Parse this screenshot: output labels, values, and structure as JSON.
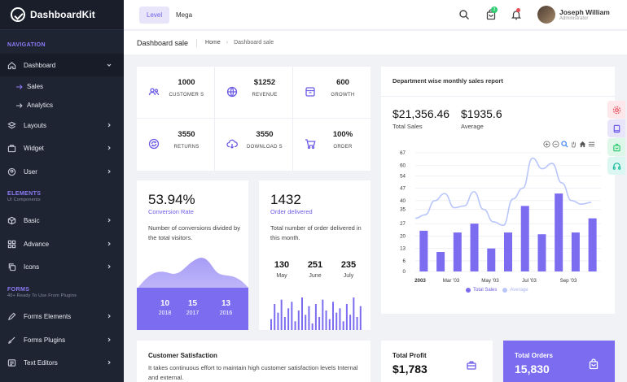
{
  "brand": {
    "name": "DashboardKit"
  },
  "sidebar": {
    "sections": [
      {
        "title": "NAVIGATION",
        "subtitle": ""
      },
      {
        "title": "ELEMENTS",
        "subtitle": "UI Components"
      },
      {
        "title": "FORMS",
        "subtitle": "40+ Ready To Use From Plugins"
      }
    ],
    "items": [
      {
        "label": "Dashboard",
        "icon": "home-icon"
      },
      {
        "label": "Layouts",
        "icon": "layers-icon"
      },
      {
        "label": "Widget",
        "icon": "briefcase-icon"
      },
      {
        "label": "User",
        "icon": "user-circle-icon"
      },
      {
        "label": "Basic",
        "icon": "box-icon"
      },
      {
        "label": "Advance",
        "icon": "grid-icon"
      },
      {
        "label": "Icons",
        "icon": "copy-icon"
      },
      {
        "label": "Forms Elements",
        "icon": "pen-icon"
      },
      {
        "label": "Forms Plugins",
        "icon": "brush-icon"
      },
      {
        "label": "Text Editors",
        "icon": "editor-icon"
      }
    ],
    "subitems": [
      {
        "label": "Sales"
      },
      {
        "label": "Analytics"
      }
    ]
  },
  "header": {
    "tabs": [
      {
        "label": "Level"
      },
      {
        "label": "Mega"
      }
    ],
    "cart_badge": "3",
    "user": {
      "name": "Joseph William",
      "role": "Administrator"
    }
  },
  "breadcrumb": {
    "title": "Dashboard sale",
    "home": "Home",
    "current": "Dashboard sale"
  },
  "stats": [
    {
      "value": "1000",
      "label": "CUSTOMER S",
      "icon": "users-icon"
    },
    {
      "value": "$1252",
      "label": "REVENUE",
      "icon": "globe-icon"
    },
    {
      "value": "600",
      "label": "GROWTH",
      "icon": "box-icon"
    },
    {
      "value": "3550",
      "label": "RETURNS",
      "icon": "refresh-icon"
    },
    {
      "value": "3550",
      "label": "DOWNLOAD S",
      "icon": "cloud-download-icon"
    },
    {
      "value": "100%",
      "label": "ORDER",
      "icon": "cart-icon"
    }
  ],
  "conversion": {
    "value": "53.94%",
    "label": "Conversion Rate",
    "desc": "Number of conversions divided by the total visitors.",
    "years": [
      {
        "n": "10",
        "y": "2018"
      },
      {
        "n": "15",
        "y": "2017"
      },
      {
        "n": "13",
        "y": "2016"
      }
    ],
    "accent": "#7b6cf0"
  },
  "orders": {
    "value": "1432",
    "label": "Order delivered",
    "desc": "Total number of order delivered in this month.",
    "months": [
      {
        "n": "130",
        "m": "May"
      },
      {
        "n": "251",
        "m": "June"
      },
      {
        "n": "235",
        "m": "July"
      }
    ],
    "spark": [
      5,
      12,
      8,
      14,
      6,
      10,
      13,
      4,
      9,
      15,
      7,
      11,
      3,
      12,
      6,
      14,
      9,
      5,
      13,
      8,
      10,
      4,
      12,
      7,
      15,
      6,
      11
    ]
  },
  "department": {
    "title": "Department wise monthly sales report",
    "total_sales": "$21,356.46",
    "total_sales_label": "Total Sales",
    "average": "$1935.6",
    "average_label": "Average"
  },
  "chart_data": {
    "type": "bar",
    "x_tick_labels": [
      "2003",
      "Mar '03",
      "May '03",
      "Jul '03",
      "Sep '03"
    ],
    "yticks": [
      0,
      6,
      13,
      20,
      27,
      35,
      40,
      47,
      54,
      60,
      67
    ],
    "ylim": [
      0,
      67
    ],
    "series": [
      {
        "name": "Total Sales",
        "type": "bar",
        "color": "#7b6cf0",
        "values": [
          23,
          11,
          22,
          27,
          13,
          22,
          37,
          21,
          44,
          22,
          30
        ]
      },
      {
        "name": "Average",
        "type": "line",
        "color": "#b9c6fb",
        "values": [
          30,
          32,
          40,
          44,
          36,
          37,
          45,
          35,
          28,
          26,
          41,
          47,
          64,
          58,
          61,
          50,
          40,
          38,
          39
        ]
      }
    ],
    "legend": "bottom"
  },
  "satisfaction": {
    "title": "Customer Satisfaction",
    "desc": "It takes continuous effort to maintain high customer satisfaction levels Internal and external."
  },
  "profit": {
    "title": "Total Profit",
    "value": "$1,783"
  },
  "total_orders": {
    "title": "Total Orders",
    "value": "15,830"
  },
  "fab_colors": [
    "#e74c5b",
    "#6c5ce7",
    "#2ecc71",
    "#1abc9c"
  ]
}
